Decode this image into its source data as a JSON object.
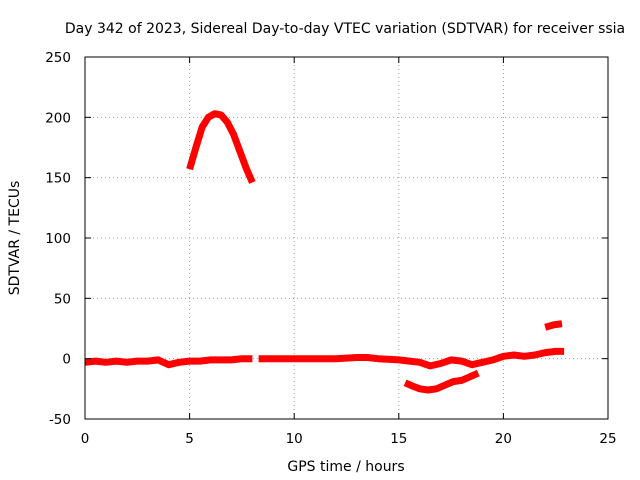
{
  "chart_data": {
    "type": "line",
    "title": "Day 342 of 2023, Sidereal Day-to-day VTEC variation (SDTVAR) for receiver ssia",
    "xlabel": "GPS time / hours",
    "ylabel": "SDTVAR / TECUs",
    "xlim": [
      0,
      25
    ],
    "ylim": [
      -50,
      250
    ],
    "xticks": [
      "0",
      "5",
      "10",
      "15",
      "20",
      "25"
    ],
    "xtick_values": [
      0,
      5,
      10,
      15,
      20,
      25
    ],
    "yticks": [
      "-50",
      "0",
      "50",
      "100",
      "150",
      "200",
      "250"
    ],
    "ytick_values": [
      -50,
      0,
      50,
      100,
      150,
      200,
      250
    ],
    "grid": true,
    "color": "#ff0000",
    "series": [
      {
        "name": "arc-1",
        "x": [
          0.0,
          0.5,
          1.0,
          1.5,
          2.0,
          2.5,
          3.0,
          3.5,
          4.0,
          4.5,
          5.0,
          5.5,
          6.0,
          6.5,
          7.0,
          7.5,
          8.0
        ],
        "y": [
          -3,
          -2,
          -3,
          -2,
          -3,
          -2,
          -2,
          -1,
          -5,
          -3,
          -2,
          -2,
          -1,
          -1,
          -1,
          0,
          0
        ]
      },
      {
        "name": "arc-2",
        "x": [
          5.0,
          5.3,
          5.6,
          5.9,
          6.2,
          6.5,
          6.8,
          7.1,
          7.4,
          7.7,
          8.0
        ],
        "y": [
          157,
          175,
          192,
          200,
          203,
          202,
          196,
          186,
          172,
          158,
          146
        ]
      },
      {
        "name": "arc-3",
        "x": [
          8.3,
          9.0,
          10.0,
          11.0,
          12.0,
          13.0,
          13.5,
          14.0,
          15.0,
          15.5,
          16.0,
          16.5,
          17.0,
          17.5,
          18.0,
          18.5,
          19.0,
          19.5,
          20.0,
          20.5,
          21.0,
          21.5,
          22.0,
          22.5,
          22.9
        ],
        "y": [
          0,
          0,
          0,
          0,
          0,
          1,
          1,
          0,
          -1,
          -2,
          -3,
          -6,
          -4,
          -1,
          -2,
          -5,
          -3,
          -1,
          2,
          3,
          2,
          3,
          5,
          6,
          6
        ]
      },
      {
        "name": "arc-4",
        "x": [
          15.3,
          15.7,
          16.0,
          16.4,
          16.8,
          17.2,
          17.6,
          18.0,
          18.4,
          18.8
        ],
        "y": [
          -20,
          -23,
          -25,
          -26,
          -25,
          -22,
          -19,
          -18,
          -15,
          -12
        ]
      },
      {
        "name": "arc-5",
        "x": [
          22.0,
          22.4,
          22.8
        ],
        "y": [
          26,
          28,
          29
        ]
      }
    ]
  }
}
